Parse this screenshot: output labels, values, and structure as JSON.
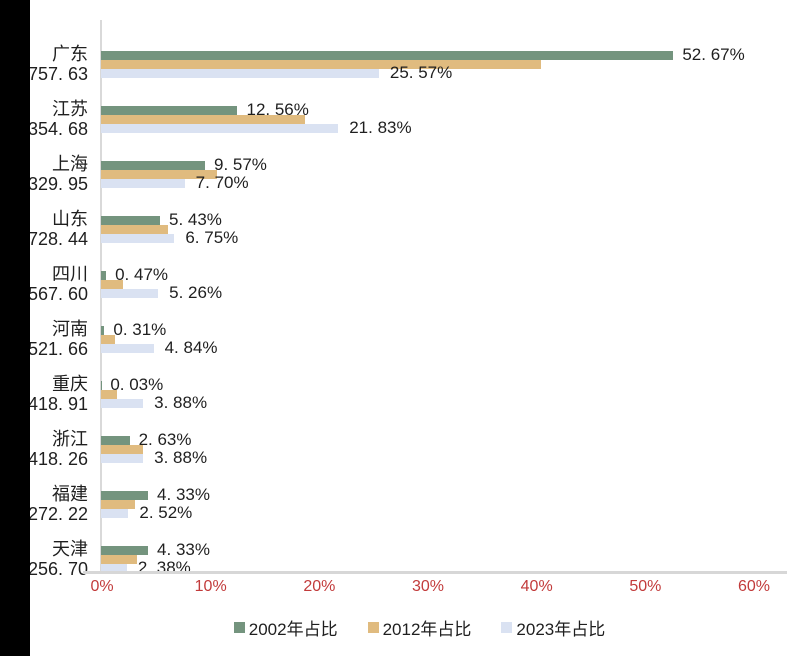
{
  "chart_data": {
    "type": "bar",
    "orientation": "horizontal",
    "title": "",
    "categories": [
      "广东",
      "江苏",
      "上海",
      "山东",
      "四川",
      "河南",
      "重庆",
      "浙江",
      "福建",
      "天津"
    ],
    "category_secondary_values": [
      "757.63",
      "354.68",
      "329.95",
      "728.44",
      "567.60",
      "521.66",
      "418.91",
      "418.26",
      "272.22",
      "256.70"
    ],
    "series": [
      {
        "name": "2002年占比",
        "color": "#74947e",
        "values": [
          52.67,
          12.56,
          9.57,
          5.43,
          0.47,
          0.31,
          0.03,
          2.63,
          4.33,
          4.33
        ],
        "labels": [
          "52.67%",
          "12.56%",
          "9.57%",
          "5.43%",
          "0.47%",
          "0.31%",
          "0.03%",
          "2.63%",
          "4.33%",
          "4.33%"
        ],
        "labels_visible": true
      },
      {
        "name": "2012年占比",
        "color": "#e0bb7f",
        "values": [
          40.5,
          18.8,
          10.7,
          6.2,
          2.0,
          1.3,
          1.5,
          3.9,
          3.1,
          3.3
        ],
        "labels_visible": false
      },
      {
        "name": "2023年占比",
        "color": "#dae2f2",
        "values": [
          25.57,
          21.83,
          7.7,
          6.75,
          5.26,
          4.84,
          3.88,
          3.88,
          2.52,
          2.38
        ],
        "labels": [
          "25.57%",
          "21.83%",
          "7.70%",
          "6.75%",
          "5.26%",
          "4.84%",
          "3.88%",
          "3.88%",
          "2.52%",
          "2.38%"
        ],
        "labels_visible": true
      }
    ],
    "x_axis": {
      "min": 0,
      "max": 60,
      "ticks": [
        "0%",
        "10%",
        "20%",
        "30%",
        "40%",
        "50%",
        "60%"
      ],
      "tick_values": [
        0,
        10,
        20,
        30,
        40,
        50,
        60
      ],
      "tick_color": "#c23b3b"
    },
    "legend": {
      "position": "bottom",
      "items": [
        "2002年占比",
        "2012年占比",
        "2023年占比"
      ]
    },
    "grid": false,
    "axis_line_color": "#d9d9d9",
    "text_color": "#1f1f1f"
  }
}
